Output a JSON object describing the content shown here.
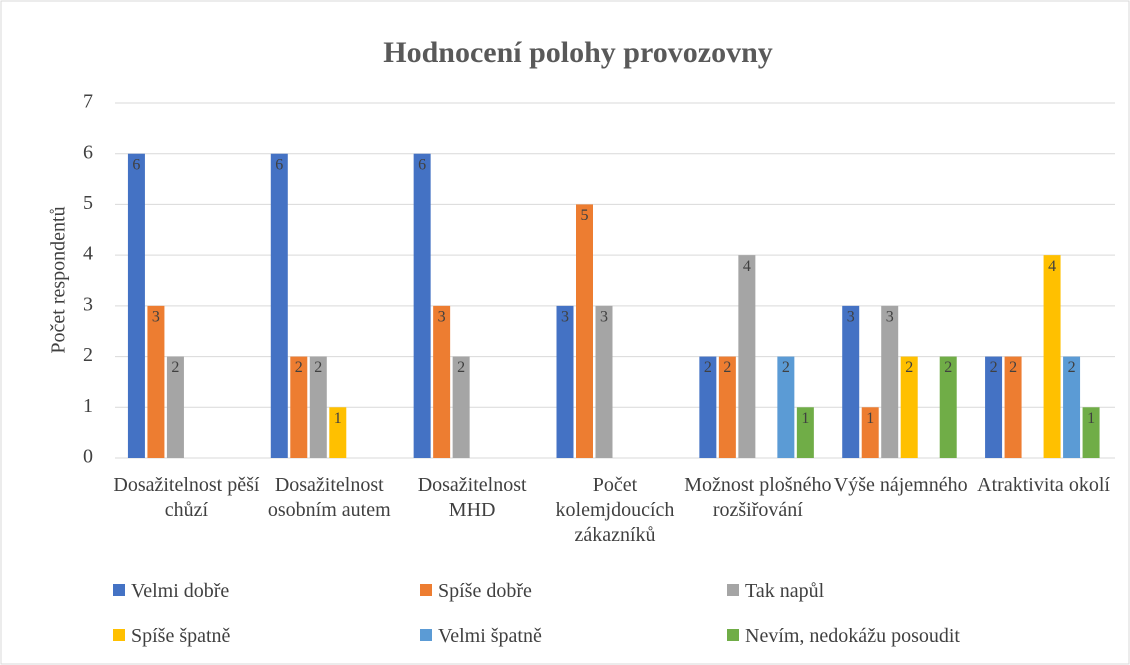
{
  "chart_data": {
    "type": "bar",
    "title": "Hodnocení polohy provozovny",
    "y_label": "Počet respondentů",
    "categories": [
      "Dosažitelnost pěší chůzí",
      "Dosažitelnost osobním autem",
      "Dosažitelnost MHD",
      "Počet kolemjdoucích zákazníků",
      "Možnost plošného rozšiřování",
      "Výše nájemného",
      "Atraktivita okolí"
    ],
    "series": [
      {
        "name": "Velmi dobře",
        "color": "#4472c4",
        "values": [
          6,
          6,
          6,
          3,
          2,
          3,
          2
        ]
      },
      {
        "name": "Spíše dobře",
        "color": "#ed7d31",
        "values": [
          3,
          2,
          3,
          5,
          2,
          1,
          2
        ]
      },
      {
        "name": "Tak napůl",
        "color": "#a5a5a5",
        "values": [
          2,
          2,
          2,
          3,
          4,
          3,
          0
        ]
      },
      {
        "name": "Spíše špatně",
        "color": "#ffc000",
        "values": [
          0,
          1,
          0,
          0,
          0,
          2,
          4
        ]
      },
      {
        "name": "Velmi špatně",
        "color": "#5b9bd5",
        "values": [
          0,
          0,
          0,
          0,
          2,
          0,
          2
        ]
      },
      {
        "name": "Nevím, nedokážu posoudit",
        "color": "#70ad47",
        "values": [
          0,
          0,
          0,
          0,
          1,
          2,
          1
        ]
      }
    ],
    "ylim": [
      0,
      7
    ],
    "yticks": [
      0,
      1,
      2,
      3,
      4,
      5,
      6,
      7
    ],
    "grid": true,
    "legend": "bottom"
  }
}
